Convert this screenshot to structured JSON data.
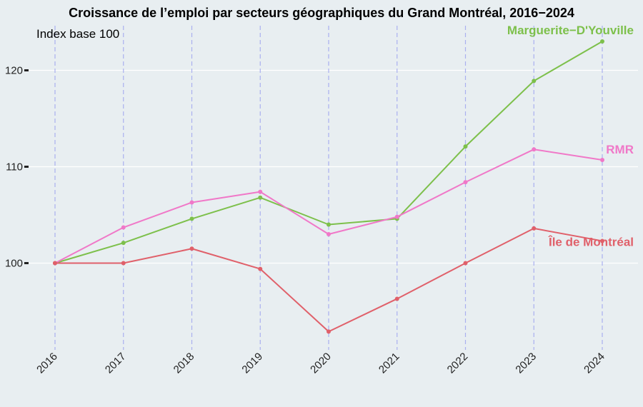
{
  "chart_data": {
    "type": "line",
    "title": "Croissance de l’emploi par secteurs géographiques du Grand Montréal, 2016−2024",
    "subtitle": "Index base 100",
    "xlabel": "",
    "ylabel": "",
    "x": [
      "2016",
      "2017",
      "2018",
      "2019",
      "2020",
      "2021",
      "2022",
      "2023",
      "2024"
    ],
    "ylim": [
      92,
      124
    ],
    "yticks": [
      100,
      110,
      120
    ],
    "grid": true,
    "legend": "direct labels at line ends",
    "series": [
      {
        "name": "Marguerite−D'Youville",
        "color": "#7dc04b",
        "values": [
          100,
          102.1,
          104.6,
          106.8,
          104.0,
          104.6,
          112.1,
          118.9,
          123.0
        ]
      },
      {
        "name": "RMR",
        "color": "#f078c8",
        "values": [
          100,
          103.7,
          106.3,
          107.4,
          103.0,
          104.8,
          108.4,
          111.8,
          110.7
        ]
      },
      {
        "name": "Île de Montréal",
        "color": "#e0606a",
        "values": [
          100,
          100.0,
          101.5,
          99.4,
          92.9,
          96.3,
          100.0,
          103.6,
          102.3
        ]
      }
    ],
    "colors": {
      "background": "#e8eef1",
      "horizontal_grid": "#ffffff",
      "vertical_grid": "#aab0f0"
    }
  }
}
